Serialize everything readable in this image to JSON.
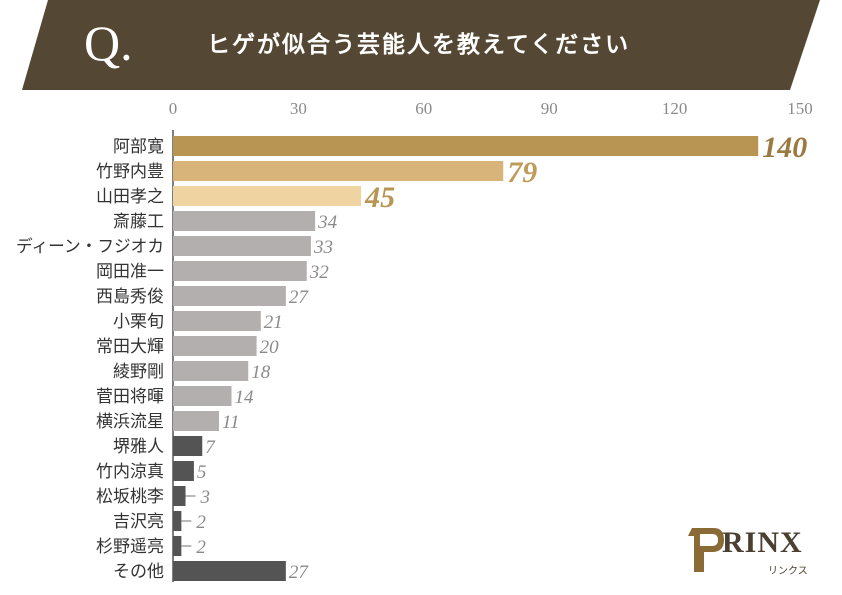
{
  "question": {
    "mark": "Q.",
    "text": "ヒゲが似合う芸能人を教えてください"
  },
  "chart_data": {
    "type": "bar",
    "orientation": "horizontal",
    "title": "ヒゲが似合う芸能人を教えてください",
    "xlim": [
      0,
      150
    ],
    "xticks": [
      0,
      30,
      60,
      90,
      120,
      150
    ],
    "grid": false,
    "categories": [
      "阿部寛",
      "竹野内豊",
      "山田孝之",
      "斎藤工",
      "ディーン・フジオカ",
      "岡田准一",
      "西島秀俊",
      "小栗旬",
      "常田大輝",
      "綾野剛",
      "菅田将暉",
      "横浜流星",
      "堺雅人",
      "竹内涼真",
      "松坂桃李",
      "吉沢亮",
      "杉野遥亮",
      "その他"
    ],
    "values": [
      140,
      79,
      45,
      34,
      33,
      32,
      27,
      21,
      20,
      18,
      14,
      11,
      7,
      5,
      3,
      2,
      2,
      27
    ],
    "bar_colors": [
      "#b99554",
      "#d8b47a",
      "#efd4a2",
      "#b3afaf",
      "#b3afaf",
      "#b3afaf",
      "#b3afaf",
      "#b3afaf",
      "#b3afaf",
      "#b3afaf",
      "#b3afaf",
      "#b3afaf",
      "#545454",
      "#545454",
      "#545454",
      "#545454",
      "#545454",
      "#545454"
    ],
    "label_colors": [
      "#9a7a40",
      "#c09a58",
      "#b99554",
      "#8a8a8a",
      "#8a8a8a",
      "#8a8a8a",
      "#8a8a8a",
      "#8a8a8a",
      "#8a8a8a",
      "#8a8a8a",
      "#8a8a8a",
      "#8a8a8a",
      "#8a8a8a",
      "#8a8a8a",
      "#8a8a8a",
      "#8a8a8a",
      "#8a8a8a",
      "#8a8a8a"
    ]
  },
  "brand": {
    "logo": "RINX",
    "sub": "リンクス",
    "color": "#4a3f30",
    "banner_color": "#544733"
  }
}
